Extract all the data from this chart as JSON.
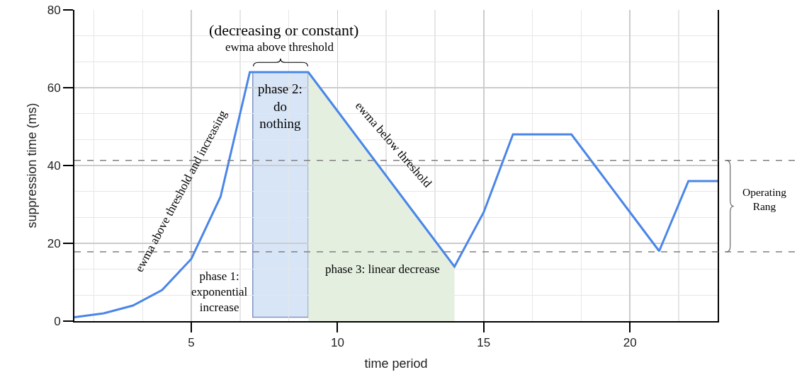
{
  "chart_data": {
    "type": "line",
    "xlabel": "time period",
    "ylabel": "suppression time (ms)",
    "x": [
      1,
      2,
      3,
      4,
      5,
      6,
      7,
      8,
      9,
      10,
      11,
      12,
      13,
      14,
      15,
      16,
      17,
      18,
      19,
      20,
      21,
      22,
      23
    ],
    "series": [
      {
        "color": "#4a86e8",
        "values": [
          1,
          2,
          4,
          8,
          16,
          32,
          64,
          64,
          64,
          54,
          44,
          34,
          24,
          14,
          28,
          48,
          48,
          48,
          38,
          28,
          18,
          36,
          36
        ]
      },
      {
        "type": "area",
        "color": "#e4efe0",
        "x": [
          9,
          10,
          11,
          12,
          13,
          14
        ],
        "values": [
          64,
          54,
          44,
          34,
          24,
          14
        ]
      }
    ],
    "xlim": [
      1,
      23
    ],
    "xticks": [
      5,
      10,
      15,
      20
    ],
    "ylim": [
      0,
      80
    ],
    "yticks": [
      0,
      20,
      40,
      60,
      80
    ],
    "grid": true,
    "marker": "none",
    "line_style": "solid",
    "ref_lines": [
      {
        "axis": "y",
        "value": 41.3,
        "color": "#808080",
        "line_style": "dashed"
      },
      {
        "axis": "y",
        "value": 17.8,
        "color": "#808080",
        "line_style": "dashed"
      }
    ],
    "bands": [
      {
        "axis": "x",
        "from": 7.1,
        "to": 9,
        "label": "phase 2:\ndo\nnothing",
        "color": "#d8e5f7"
      }
    ],
    "annotations": [
      "(decreasing or constant)",
      "ewma above threshold",
      "ewma above threshold and increasing",
      "ewma below threshold",
      "phase 1:\nexponential\nincrease",
      "phase 3: linear decrease",
      "Operating\nRang"
    ]
  }
}
